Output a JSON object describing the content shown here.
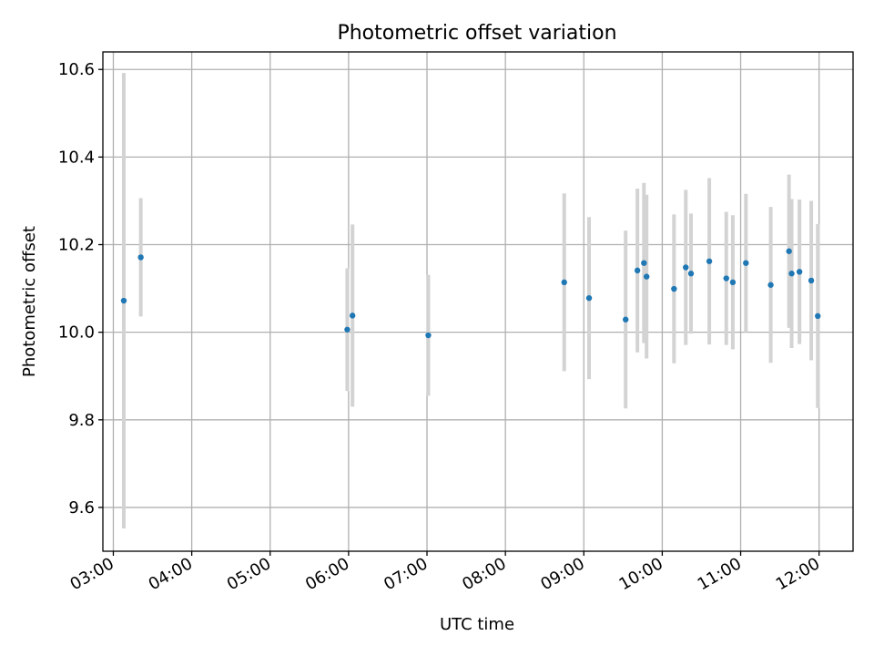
{
  "chart_data": {
    "type": "scatter",
    "title": "Photometric offset variation",
    "xlabel": "UTC time",
    "ylabel": "Photometric offset",
    "xlim": [
      "02:52",
      "12:26"
    ],
    "ylim": [
      9.5,
      10.64
    ],
    "x_ticks": [
      "03:00",
      "04:00",
      "05:00",
      "06:00",
      "07:00",
      "08:00",
      "09:00",
      "10:00",
      "11:00",
      "12:00"
    ],
    "y_ticks": [
      9.6,
      9.8,
      10.0,
      10.2,
      10.4,
      10.6
    ],
    "grid": true,
    "colors": {
      "point": "#1f77b4",
      "errorbar": "#d3d3d3"
    },
    "series": [
      {
        "points": [
          {
            "x": "03:08",
            "y": 10.072,
            "yerr": 0.52
          },
          {
            "x": "03:21",
            "y": 10.171,
            "yerr": 0.135
          },
          {
            "x": "05:59",
            "y": 10.006,
            "yerr": 0.14
          },
          {
            "x": "06:03",
            "y": 10.038,
            "yerr": 0.208
          },
          {
            "x": "07:01",
            "y": 9.993,
            "yerr": 0.138
          },
          {
            "x": "08:45",
            "y": 10.114,
            "yerr": 0.203
          },
          {
            "x": "09:04",
            "y": 10.078,
            "yerr": 0.185
          },
          {
            "x": "09:32",
            "y": 10.029,
            "yerr": 0.203
          },
          {
            "x": "09:41",
            "y": 10.141,
            "yerr": 0.187
          },
          {
            "x": "09:46",
            "y": 10.158,
            "yerr": 0.183
          },
          {
            "x": "09:48",
            "y": 10.127,
            "yerr": 0.187
          },
          {
            "x": "10:09",
            "y": 10.099,
            "yerr": 0.17
          },
          {
            "x": "10:18",
            "y": 10.148,
            "yerr": 0.177
          },
          {
            "x": "10:22",
            "y": 10.134,
            "yerr": 0.137
          },
          {
            "x": "10:36",
            "y": 10.162,
            "yerr": 0.19
          },
          {
            "x": "10:49",
            "y": 10.123,
            "yerr": 0.152
          },
          {
            "x": "10:54",
            "y": 10.114,
            "yerr": 0.153
          },
          {
            "x": "11:04",
            "y": 10.158,
            "yerr": 0.158
          },
          {
            "x": "11:23",
            "y": 10.108,
            "yerr": 0.178
          },
          {
            "x": "11:37",
            "y": 10.185,
            "yerr": 0.175
          },
          {
            "x": "11:39",
            "y": 10.134,
            "yerr": 0.17
          },
          {
            "x": "11:45",
            "y": 10.138,
            "yerr": 0.165
          },
          {
            "x": "11:54",
            "y": 10.118,
            "yerr": 0.182
          },
          {
            "x": "11:59",
            "y": 10.037,
            "yerr": 0.21
          }
        ]
      }
    ]
  }
}
